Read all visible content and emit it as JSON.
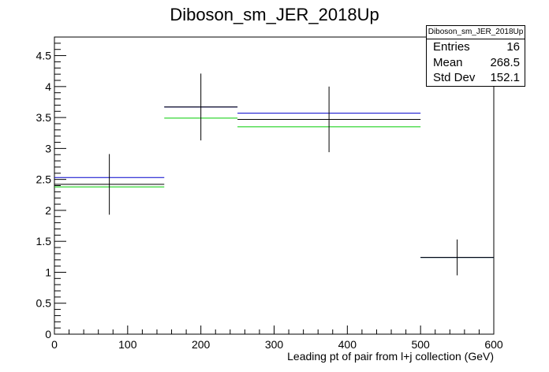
{
  "chart_data": {
    "type": "histogram",
    "title": "Diboson_sm_JER_2018Up",
    "xlabel": "Leading pt of pair from l+j collection (GeV)",
    "ylabel": "",
    "xlim": [
      0,
      600
    ],
    "ylim": [
      0,
      4.8
    ],
    "x_ticks": [
      0,
      100,
      200,
      300,
      400,
      500,
      600
    ],
    "y_ticks": [
      0,
      0.5,
      1,
      1.5,
      2,
      2.5,
      3,
      3.5,
      4,
      4.5
    ],
    "bins": [
      {
        "low": 0,
        "high": 150,
        "center": 75
      },
      {
        "low": 150,
        "high": 250,
        "center": 200
      },
      {
        "low": 250,
        "high": 500,
        "center": 375
      },
      {
        "low": 500,
        "high": 600,
        "center": 550
      }
    ],
    "series": [
      {
        "color": "#000000",
        "values": [
          2.42,
          3.67,
          3.47,
          1.24
        ],
        "errors": [
          0.49,
          0.54,
          0.53,
          0.29
        ]
      },
      {
        "color": "#0000cc",
        "values": [
          2.53,
          3.67,
          3.57,
          1.24
        ]
      },
      {
        "color": "#00cc00",
        "values": [
          2.38,
          3.49,
          3.35,
          1.24
        ]
      }
    ],
    "stats": {
      "title": "Diboson_sm_JER_2018Up",
      "rows": [
        {
          "label": "Entries",
          "value": "16"
        },
        {
          "label": "Mean",
          "value": "268.5"
        },
        {
          "label": "Std Dev",
          "value": "152.1"
        }
      ]
    }
  }
}
